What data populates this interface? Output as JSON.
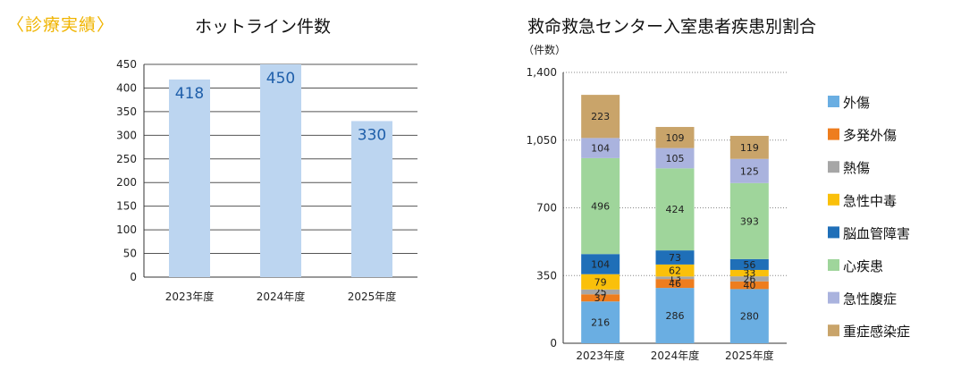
{
  "page": {
    "section_label": "〈診療実績〉"
  },
  "chart_data": [
    {
      "type": "bar",
      "title": "ホットライン件数",
      "categories": [
        "2023年度",
        "2024年度",
        "2025年度"
      ],
      "values": [
        418,
        450,
        330
      ],
      "ylim": [
        0,
        450
      ],
      "yticks": [
        0,
        50,
        100,
        150,
        200,
        250,
        300,
        350,
        400,
        450
      ],
      "ytick_labels": [
        "0",
        "50",
        "100",
        "150",
        "200",
        "250",
        "300",
        "350",
        "400",
        "450"
      ],
      "grid": true,
      "bar_color": "#bcd5f0",
      "label_color": "#1f5faa"
    },
    {
      "type": "bar",
      "stacked": true,
      "title": "救命救急センター入室患者疾患別割合",
      "ylabel": "（件数）",
      "categories": [
        "2023年度",
        "2024年度",
        "2025年度"
      ],
      "ylim": [
        0,
        1400
      ],
      "yticks": [
        0,
        350,
        700,
        1050,
        1400
      ],
      "ytick_labels": [
        "0",
        "350",
        "700",
        "1,050",
        "1,400"
      ],
      "grid": true,
      "legend_position": "right",
      "series": [
        {
          "name": "外傷",
          "values": [
            216,
            286,
            280
          ],
          "color": "#6aaee2"
        },
        {
          "name": "多発外傷",
          "values": [
            37,
            46,
            40
          ],
          "color": "#ee7d1e"
        },
        {
          "name": "熱傷",
          "values": [
            25,
            13,
            26
          ],
          "color": "#a6a6a6"
        },
        {
          "name": "急性中毒",
          "values": [
            79,
            62,
            33
          ],
          "color": "#fac00a"
        },
        {
          "name": "脳血管障害",
          "values": [
            104,
            73,
            56
          ],
          "color": "#1f6fb8"
        },
        {
          "name": "心疾患",
          "values": [
            496,
            424,
            393
          ],
          "color": "#9fd59b"
        },
        {
          "name": "急性腹症",
          "values": [
            104,
            105,
            125
          ],
          "color": "#aab3de"
        },
        {
          "name": "重症感染症",
          "values": [
            223,
            109,
            119
          ],
          "color": "#c9a46a"
        }
      ]
    }
  ]
}
